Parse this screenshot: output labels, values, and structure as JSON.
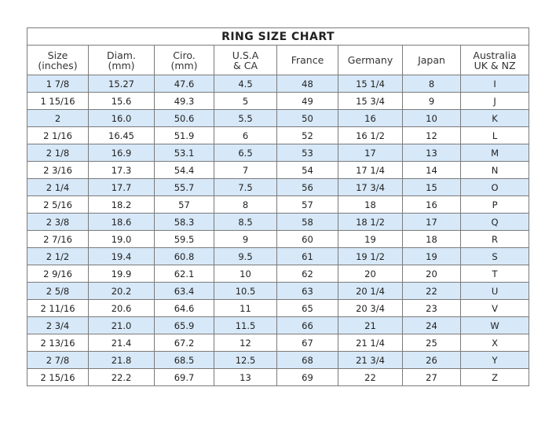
{
  "title": "RING SIZE CHART",
  "headers": [
    [
      "Size",
      "(inches)"
    ],
    [
      "Diam.",
      "(mm)"
    ],
    [
      "Ciro.",
      "(mm)"
    ],
    [
      "U.S.A",
      "& CA"
    ],
    [
      "France",
      ""
    ],
    [
      "Germany",
      ""
    ],
    [
      "Japan",
      ""
    ],
    [
      "Australia",
      "UK & NZ"
    ]
  ],
  "row_colors": {
    "odd": "#d7e8f8",
    "even": "#ffffff"
  },
  "rows": [
    [
      "1 7/8",
      "15.27",
      "47.6",
      "4.5",
      "48",
      "15 1/4",
      "8",
      "I"
    ],
    [
      "1 15/16",
      "15.6",
      "49.3",
      "5",
      "49",
      "15 3/4",
      "9",
      "J"
    ],
    [
      "2",
      "16.0",
      "50.6",
      "5.5",
      "50",
      "16",
      "10",
      "K"
    ],
    [
      "2 1/16",
      "16.45",
      "51.9",
      "6",
      "52",
      "16 1/2",
      "12",
      "L"
    ],
    [
      "2 1/8",
      "16.9",
      "53.1",
      "6.5",
      "53",
      "17",
      "13",
      "M"
    ],
    [
      "2 3/16",
      "17.3",
      "54.4",
      "7",
      "54",
      "17 1/4",
      "14",
      "N"
    ],
    [
      "2 1/4",
      "17.7",
      "55.7",
      "7.5",
      "56",
      "17 3/4",
      "15",
      "O"
    ],
    [
      "2 5/16",
      "18.2",
      "57",
      "8",
      "57",
      "18",
      "16",
      "P"
    ],
    [
      "2 3/8",
      "18.6",
      "58.3",
      "8.5",
      "58",
      "18 1/2",
      "17",
      "Q"
    ],
    [
      "2 7/16",
      "19.0",
      "59.5",
      "9",
      "60",
      "19",
      "18",
      "R"
    ],
    [
      "2 1/2",
      "19.4",
      "60.8",
      "9.5",
      "61",
      "19 1/2",
      "19",
      "S"
    ],
    [
      "2 9/16",
      "19.9",
      "62.1",
      "10",
      "62",
      "20",
      "20",
      "T"
    ],
    [
      "2 5/8",
      "20.2",
      "63.4",
      "10.5",
      "63",
      "20 1/4",
      "22",
      "U"
    ],
    [
      "2 11/16",
      "20.6",
      "64.6",
      "11",
      "65",
      "20 3/4",
      "23",
      "V"
    ],
    [
      "2 3/4",
      "21.0",
      "65.9",
      "11.5",
      "66",
      "21",
      "24",
      "W"
    ],
    [
      "2 13/16",
      "21.4",
      "67.2",
      "12",
      "67",
      "21 1/4",
      "25",
      "X"
    ],
    [
      "2 7/8",
      "21.8",
      "68.5",
      "12.5",
      "68",
      "21 3/4",
      "26",
      "Y"
    ],
    [
      "2 15/16",
      "22.2",
      "69.7",
      "13",
      "69",
      "22",
      "27",
      "Z"
    ]
  ]
}
